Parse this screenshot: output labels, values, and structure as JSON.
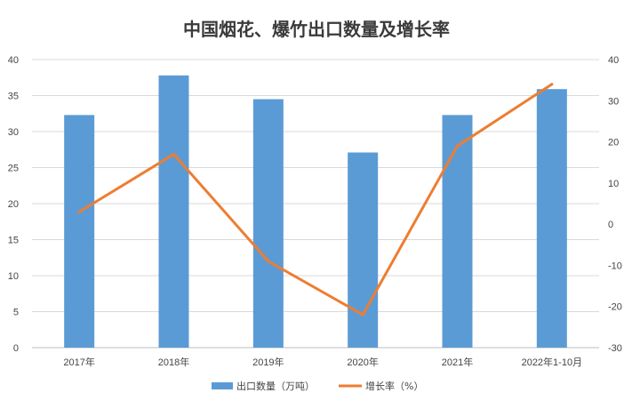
{
  "chart_data": {
    "type": "bar",
    "title": "中国烟花、爆竹出口数量及增长率",
    "categories": [
      "2017年",
      "2018年",
      "2019年",
      "2020年",
      "2021年",
      "2022年1-10月"
    ],
    "series": [
      {
        "name": "出口数量（万吨）",
        "type": "bar",
        "axis": "left",
        "color": "#5b9bd5",
        "values": [
          32.3,
          37.8,
          34.5,
          27.1,
          32.3,
          35.9
        ]
      },
      {
        "name": "增长率（%）",
        "type": "line",
        "axis": "right",
        "color": "#ed7d31",
        "values": [
          3,
          17,
          -9,
          -22,
          19,
          34
        ]
      }
    ],
    "y_left": {
      "min": 0,
      "max": 40,
      "step": 5,
      "ticks": [
        "0",
        "5",
        "10",
        "15",
        "20",
        "25",
        "30",
        "35",
        "40"
      ]
    },
    "y_right": {
      "min": -30,
      "max": 40,
      "step": 10,
      "ticks": [
        "-30",
        "-20",
        "-10",
        "0",
        "10",
        "20",
        "30",
        "40"
      ]
    },
    "grid": true,
    "legend_position": "bottom"
  }
}
